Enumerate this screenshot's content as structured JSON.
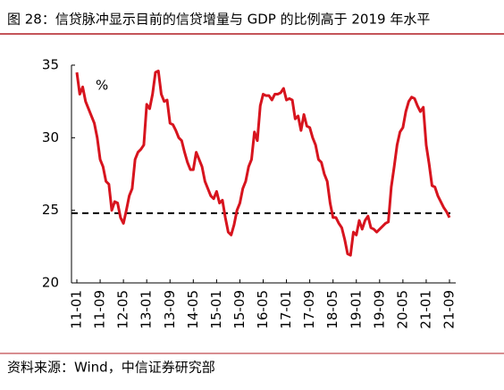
{
  "chart_data": {
    "type": "line",
    "title": "图 28：信贷脉冲显示目前的信贷增量与 GDP 的比例高于 2019 年水平",
    "unit_label": "%",
    "source": "资料来源：Wind，中信证券研究部",
    "categories": [
      "11-01",
      null,
      null,
      null,
      null,
      null,
      null,
      null,
      "11-09",
      null,
      null,
      null,
      null,
      null,
      null,
      null,
      "12-05",
      null,
      null,
      null,
      null,
      null,
      null,
      null,
      "13-01",
      null,
      null,
      null,
      null,
      null,
      null,
      null,
      "13-09",
      null,
      null,
      null,
      null,
      null,
      null,
      null,
      "14-05",
      null,
      null,
      null,
      null,
      null,
      null,
      null,
      "15-01",
      null,
      null,
      null,
      null,
      null,
      null,
      null,
      "15-09",
      null,
      null,
      null,
      null,
      null,
      null,
      null,
      "16-05",
      null,
      null,
      null,
      null,
      null,
      null,
      null,
      "17-01",
      null,
      null,
      null,
      null,
      null,
      null,
      null,
      "17-09",
      null,
      null,
      null,
      null,
      null,
      null,
      null,
      "18-05",
      null,
      null,
      null,
      null,
      null,
      null,
      null,
      "19-01",
      null,
      null,
      null,
      null,
      null,
      null,
      null,
      "19-09",
      null,
      null,
      null,
      null,
      null,
      null,
      null,
      "20-05",
      null,
      null,
      null,
      null,
      null,
      null,
      null,
      "21-01",
      null,
      null,
      null,
      null,
      null,
      null,
      null,
      "21-09"
    ],
    "values": [
      34.5,
      33,
      33.5,
      32.5,
      32,
      31.5,
      31,
      30,
      28.5,
      28,
      27,
      26.8,
      25,
      25.6,
      25.5,
      24.5,
      24.1,
      25,
      26,
      26.5,
      28.5,
      29,
      29.2,
      29.5,
      32.3,
      32,
      33,
      34.5,
      34.6,
      33,
      32.5,
      32.6,
      31,
      30.9,
      30.5,
      30,
      29.8,
      29,
      28.3,
      27.8,
      27.8,
      29,
      28.5,
      28,
      27,
      26.5,
      26,
      25.8,
      26.3,
      25.5,
      25.7,
      24.5,
      23.5,
      23.3,
      24,
      25,
      25.5,
      26.5,
      27,
      28,
      28.5,
      30.4,
      29.8,
      32.2,
      33,
      32.9,
      32.9,
      32.6,
      33,
      33,
      33.1,
      33.4,
      32.6,
      32.7,
      32.6,
      31.3,
      31.5,
      30.5,
      31.6,
      30.8,
      30.7,
      30,
      29.5,
      28.5,
      28.3,
      27.5,
      27,
      25.5,
      24.5,
      24.5,
      24.1,
      23.8,
      23,
      22,
      21.9,
      23.5,
      23.3,
      24.3,
      23.7,
      24.3,
      24.6,
      23.8,
      23.7,
      23.5,
      23.7,
      23.9,
      24.1,
      24.2,
      26.6,
      28,
      29.5,
      30.4,
      30.7,
      31.8,
      32.5,
      32.8,
      32.7,
      32.2,
      31.8,
      32.1,
      29.5,
      28.2,
      26.7,
      26.6,
      26,
      25.6,
      25.2,
      24.9,
      24.5
    ],
    "color": "#d7141e",
    "reference_line": 24.8,
    "ylim": [
      20,
      35
    ],
    "yticks": [
      20,
      25,
      30,
      35
    ],
    "grid": false
  }
}
